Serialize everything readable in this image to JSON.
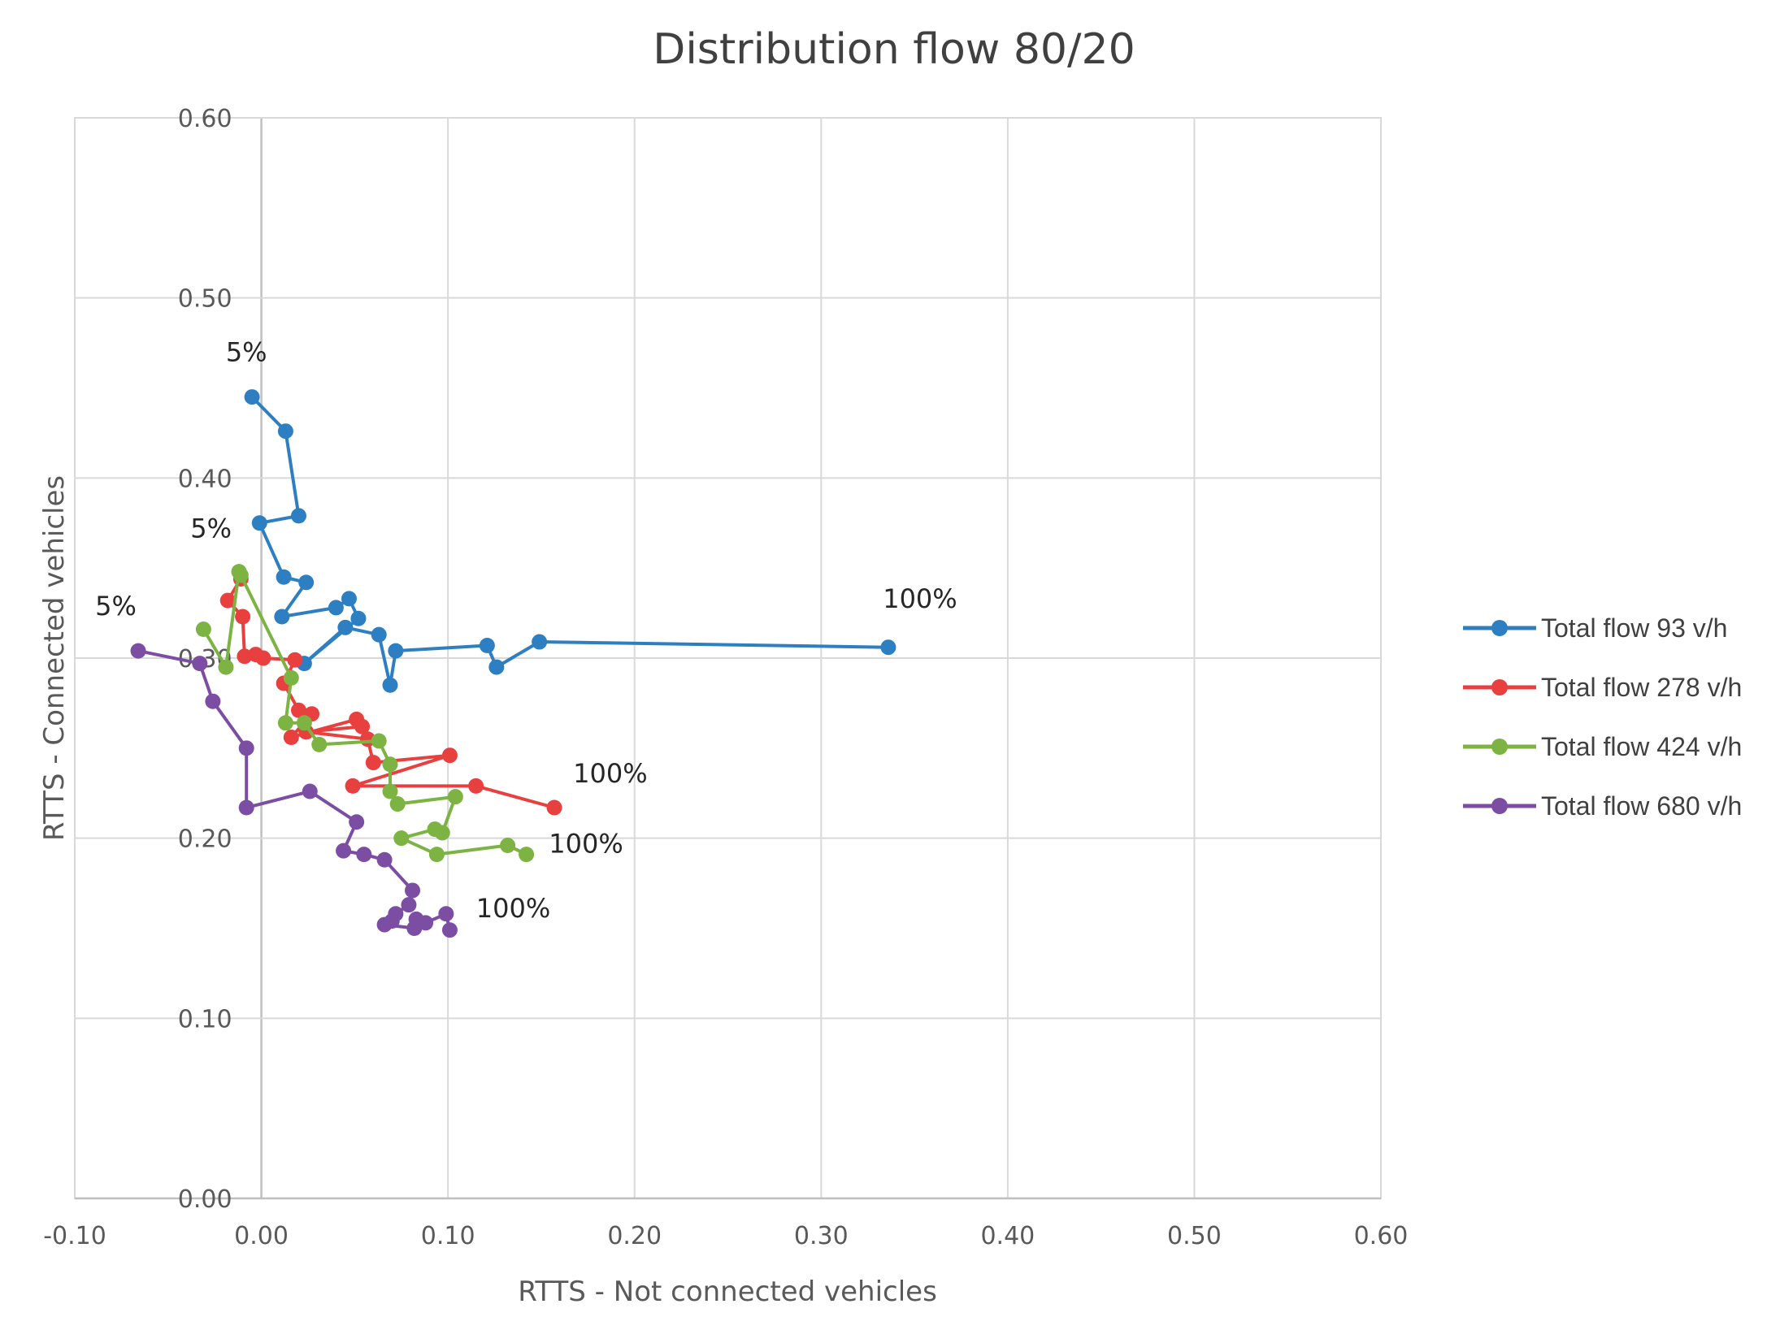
{
  "chart_data": {
    "type": "scatter",
    "title": "Distribution flow 80/20",
    "xlabel": "RTTS - Not connected vehicles",
    "ylabel": "RTTS - Connected vehicles",
    "xlim": [
      -0.1,
      0.6
    ],
    "ylim": [
      0.0,
      0.6
    ],
    "x_ticks": [
      "-0.10",
      "0.00",
      "0.10",
      "0.20",
      "0.30",
      "0.40",
      "0.50",
      "0.60"
    ],
    "y_ticks": [
      "0.00",
      "0.10",
      "0.20",
      "0.30",
      "0.40",
      "0.50",
      "0.60"
    ],
    "grid": true,
    "legend_position": "right",
    "series": [
      {
        "name": "Total flow 93 v/h",
        "color": "#2e7fc1",
        "points": [
          [
            -0.005,
            0.445
          ],
          [
            0.013,
            0.426
          ],
          [
            0.02,
            0.379
          ],
          [
            -0.001,
            0.375
          ],
          [
            0.012,
            0.345
          ],
          [
            0.024,
            0.342
          ],
          [
            0.011,
            0.323
          ],
          [
            0.04,
            0.328
          ],
          [
            0.047,
            0.333
          ],
          [
            0.052,
            0.322
          ],
          [
            0.023,
            0.297
          ],
          [
            0.045,
            0.317
          ],
          [
            0.063,
            0.313
          ],
          [
            0.069,
            0.285
          ],
          [
            0.072,
            0.304
          ],
          [
            0.121,
            0.307
          ],
          [
            0.126,
            0.295
          ],
          [
            0.149,
            0.309
          ],
          [
            0.336,
            0.306
          ]
        ]
      },
      {
        "name": "Total flow 278 v/h",
        "color": "#e8403f",
        "points": [
          [
            -0.011,
            0.344
          ],
          [
            -0.018,
            0.332
          ],
          [
            -0.01,
            0.323
          ],
          [
            -0.009,
            0.301
          ],
          [
            -0.003,
            0.302
          ],
          [
            0.001,
            0.3
          ],
          [
            0.018,
            0.299
          ],
          [
            0.012,
            0.286
          ],
          [
            0.02,
            0.271
          ],
          [
            0.027,
            0.269
          ],
          [
            0.016,
            0.256
          ],
          [
            0.051,
            0.266
          ],
          [
            0.054,
            0.262
          ],
          [
            0.024,
            0.259
          ],
          [
            0.057,
            0.255
          ],
          [
            0.06,
            0.242
          ],
          [
            0.101,
            0.246
          ],
          [
            0.049,
            0.229
          ],
          [
            0.115,
            0.229
          ],
          [
            0.157,
            0.217
          ]
        ]
      },
      {
        "name": "Total flow 424 v/h",
        "color": "#7cb342",
        "points": [
          [
            -0.031,
            0.316
          ],
          [
            -0.019,
            0.295
          ],
          [
            -0.012,
            0.348
          ],
          [
            -0.011,
            0.346
          ],
          [
            0.016,
            0.289
          ],
          [
            0.013,
            0.264
          ],
          [
            0.023,
            0.264
          ],
          [
            0.031,
            0.252
          ],
          [
            0.063,
            0.254
          ],
          [
            0.069,
            0.241
          ],
          [
            0.069,
            0.226
          ],
          [
            0.073,
            0.219
          ],
          [
            0.104,
            0.223
          ],
          [
            0.097,
            0.203
          ],
          [
            0.093,
            0.205
          ],
          [
            0.075,
            0.2
          ],
          [
            0.094,
            0.191
          ],
          [
            0.132,
            0.196
          ],
          [
            0.142,
            0.191
          ]
        ]
      },
      {
        "name": "Total flow 680 v/h",
        "color": "#7b4ea3",
        "points": [
          [
            -0.066,
            0.304
          ],
          [
            -0.033,
            0.297
          ],
          [
            -0.026,
            0.276
          ],
          [
            -0.008,
            0.25
          ],
          [
            -0.008,
            0.217
          ],
          [
            0.026,
            0.226
          ],
          [
            0.051,
            0.209
          ],
          [
            0.044,
            0.193
          ],
          [
            0.055,
            0.191
          ],
          [
            0.066,
            0.188
          ],
          [
            0.081,
            0.171
          ],
          [
            0.079,
            0.163
          ],
          [
            0.072,
            0.158
          ],
          [
            0.07,
            0.154
          ],
          [
            0.066,
            0.152
          ],
          [
            0.082,
            0.15
          ],
          [
            0.083,
            0.155
          ],
          [
            0.088,
            0.153
          ],
          [
            0.099,
            0.158
          ],
          [
            0.101,
            0.149
          ]
        ]
      }
    ],
    "annotations": [
      {
        "text": "5%",
        "x": -0.008,
        "y": 0.465
      },
      {
        "text": "5%",
        "x": -0.027,
        "y": 0.367
      },
      {
        "text": "5%",
        "x": -0.078,
        "y": 0.324
      },
      {
        "text": "100%",
        "x": 0.353,
        "y": 0.328
      },
      {
        "text": "100%",
        "x": 0.187,
        "y": 0.231
      },
      {
        "text": "100%",
        "x": 0.174,
        "y": 0.192
      },
      {
        "text": "100%",
        "x": 0.135,
        "y": 0.156
      }
    ]
  }
}
